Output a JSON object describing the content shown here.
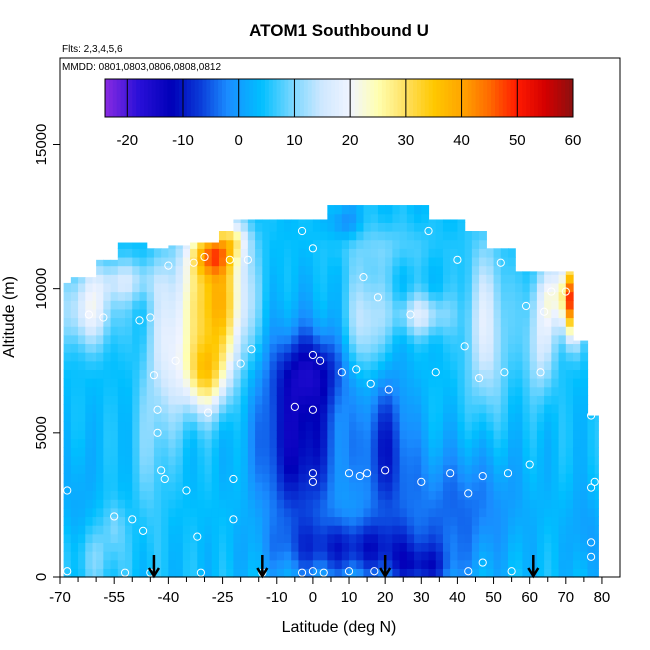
{
  "chart_data": {
    "type": "heatmap",
    "title": "ATOM1 Southbound U",
    "flights_note": "Flts: 2,3,4,5,6",
    "dates_note": "MMDD: 0801,0803,0806,0808,0812",
    "xlabel": "Latitude (deg N)",
    "ylabel": "Altitude (m)",
    "xlim": [
      -70,
      85
    ],
    "ylim": [
      0,
      18000
    ],
    "x_ticks": [
      -70,
      -55,
      -40,
      -25,
      -10,
      0,
      10,
      20,
      30,
      40,
      50,
      60,
      70,
      80
    ],
    "x_tick_labels": [
      "-70",
      "-55",
      "-40",
      "-25",
      "-10",
      "0",
      "10",
      "20",
      "30",
      "40",
      "50",
      "60",
      "70",
      "80"
    ],
    "x_minor_ticks": [
      -65,
      -60,
      -50,
      -45,
      -35,
      -30,
      -20,
      -15,
      -5,
      5,
      15,
      25,
      35,
      45,
      55,
      65,
      75
    ],
    "y_ticks": [
      0,
      5000,
      10000,
      15000
    ],
    "y_tick_labels": [
      "0",
      "5000",
      "10000",
      "15000"
    ],
    "colorbar": {
      "ticks": [
        -20,
        -10,
        0,
        10,
        20,
        30,
        40,
        50,
        60
      ],
      "tick_labels": [
        "-20",
        "-10",
        "0",
        "10",
        "20",
        "30",
        "40",
        "50",
        "60"
      ],
      "range": [
        -24,
        60
      ],
      "colors": [
        {
          "v": -24,
          "c": "#8a2be2"
        },
        {
          "v": -18,
          "c": "#2a10d8"
        },
        {
          "v": -12,
          "c": "#0000b8"
        },
        {
          "v": -7,
          "c": "#0a3ad8"
        },
        {
          "v": -2,
          "c": "#1a8cff"
        },
        {
          "v": 4,
          "c": "#00bfff"
        },
        {
          "v": 10,
          "c": "#80d8ff"
        },
        {
          "v": 15,
          "c": "#cfe8ff"
        },
        {
          "v": 20,
          "c": "#f0f4ff"
        },
        {
          "v": 25,
          "c": "#ffffb0"
        },
        {
          "v": 30,
          "c": "#ffe060"
        },
        {
          "v": 35,
          "c": "#ffc800"
        },
        {
          "v": 40,
          "c": "#ffa500"
        },
        {
          "v": 45,
          "c": "#ff6a00"
        },
        {
          "v": 50,
          "c": "#ff1a00"
        },
        {
          "v": 55,
          "c": "#d40000"
        },
        {
          "v": 60,
          "c": "#8b1010"
        }
      ]
    },
    "coverage": [
      {
        "lat0": -69,
        "lat1": -67,
        "alt_min": 0,
        "alt_max": 10200
      },
      {
        "lat0": -67,
        "lat1": -60,
        "alt_min": 0,
        "alt_max": 10400
      },
      {
        "lat0": -60,
        "lat1": -54,
        "alt_min": 0,
        "alt_max": 11000
      },
      {
        "lat0": -54,
        "lat1": -46,
        "alt_min": 0,
        "alt_max": 11600
      },
      {
        "lat0": -46,
        "lat1": -40,
        "alt_min": 0,
        "alt_max": 11400
      },
      {
        "lat0": -40,
        "lat1": -34,
        "alt_min": 0,
        "alt_max": 11500
      },
      {
        "lat0": -34,
        "lat1": -26,
        "alt_min": 0,
        "alt_max": 11600
      },
      {
        "lat0": -26,
        "lat1": -22,
        "alt_min": 0,
        "alt_max": 12000
      },
      {
        "lat0": -22,
        "lat1": -16,
        "alt_min": 0,
        "alt_max": 12400
      },
      {
        "lat0": -16,
        "lat1": -2,
        "alt_min": 0,
        "alt_max": 12400
      },
      {
        "lat0": -2,
        "lat1": 4,
        "alt_min": 0,
        "alt_max": 12400
      },
      {
        "lat0": 4,
        "lat1": 14,
        "alt_min": 0,
        "alt_max": 12900
      },
      {
        "lat0": 14,
        "lat1": 32,
        "alt_min": 0,
        "alt_max": 12900
      },
      {
        "lat0": 32,
        "lat1": 42,
        "alt_min": 0,
        "alt_max": 12400
      },
      {
        "lat0": 42,
        "lat1": 48,
        "alt_min": 0,
        "alt_max": 12000
      },
      {
        "lat0": 48,
        "lat1": 56,
        "alt_min": 0,
        "alt_max": 11400
      },
      {
        "lat0": 56,
        "lat1": 64,
        "alt_min": 0,
        "alt_max": 10600
      },
      {
        "lat0": 64,
        "lat1": 72,
        "alt_min": 0,
        "alt_max": 10600
      },
      {
        "lat0": 72,
        "lat1": 76,
        "alt_min": 0,
        "alt_max": 8200
      },
      {
        "lat0": 76,
        "lat1": 79,
        "alt_min": 0,
        "alt_max": 5600
      }
    ],
    "background_value": 4,
    "features": [
      {
        "lat": -27,
        "alt": 9600,
        "slat": 6,
        "salt": 1700,
        "amp": 34
      },
      {
        "lat": -28,
        "alt": 11200,
        "slat": 4,
        "salt": 500,
        "amp": 22
      },
      {
        "lat": -30,
        "alt": 7000,
        "slat": 4,
        "salt": 900,
        "amp": 22
      },
      {
        "lat": -22,
        "alt": 11700,
        "slat": 3,
        "salt": 400,
        "amp": 12
      },
      {
        "lat": -40,
        "alt": 8000,
        "slat": 4,
        "salt": 2000,
        "amp": 12
      },
      {
        "lat": -62,
        "alt": 9300,
        "slat": 5,
        "salt": 900,
        "amp": 15
      },
      {
        "lat": -52,
        "alt": 10300,
        "slat": 6,
        "salt": 500,
        "amp": 10
      },
      {
        "lat": -45,
        "alt": 4500,
        "slat": 3,
        "salt": 2000,
        "amp": 5
      },
      {
        "lat": -55,
        "alt": 1800,
        "slat": 2,
        "salt": 600,
        "amp": 5
      },
      {
        "lat": -60,
        "alt": 700,
        "slat": 5,
        "salt": 800,
        "amp": 5
      },
      {
        "lat": -4,
        "alt": 4800,
        "slat": 8,
        "salt": 2300,
        "amp": -17
      },
      {
        "lat": 0,
        "alt": 7200,
        "slat": 7,
        "salt": 900,
        "amp": -10
      },
      {
        "lat": 20,
        "alt": 4600,
        "slat": 5,
        "salt": 1900,
        "amp": -12
      },
      {
        "lat": 12,
        "alt": 1000,
        "slat": 14,
        "salt": 700,
        "amp": -12
      },
      {
        "lat": 30,
        "alt": 300,
        "slat": 6,
        "salt": 500,
        "amp": -10
      },
      {
        "lat": 40,
        "alt": 2500,
        "slat": 12,
        "salt": 1500,
        "amp": -8
      },
      {
        "lat": 15,
        "alt": 8800,
        "slat": 4,
        "salt": 1400,
        "amp": 12
      },
      {
        "lat": 9,
        "alt": 12300,
        "slat": 3,
        "salt": 400,
        "amp": -6
      },
      {
        "lat": 30,
        "alt": 9100,
        "slat": 5,
        "salt": 500,
        "amp": 12
      },
      {
        "lat": 48,
        "alt": 8700,
        "slat": 4,
        "salt": 2000,
        "amp": 13
      },
      {
        "lat": 63,
        "alt": 8200,
        "slat": 3,
        "salt": 1300,
        "amp": 12
      },
      {
        "lat": 72,
        "alt": 9600,
        "slat": 1.8,
        "salt": 900,
        "amp": 40
      },
      {
        "lat": 68,
        "alt": 9800,
        "slat": 4,
        "salt": 800,
        "amp": 15
      },
      {
        "lat": 20,
        "alt": 11500,
        "slat": 10,
        "salt": 600,
        "amp": 4
      },
      {
        "lat": -65,
        "alt": 3000,
        "slat": 3,
        "salt": 1400,
        "amp": -3
      },
      {
        "lat": 75,
        "alt": 1500,
        "slat": 3,
        "salt": 1200,
        "amp": -4
      }
    ],
    "sample_points": [
      [
        -68,
        200
      ],
      [
        -68,
        3000
      ],
      [
        -62,
        9100
      ],
      [
        -58,
        9000
      ],
      [
        -55,
        2100
      ],
      [
        -52,
        150
      ],
      [
        -50,
        2000
      ],
      [
        -48,
        8900
      ],
      [
        -47,
        1600
      ],
      [
        -45,
        9000
      ],
      [
        -45,
        150
      ],
      [
        -44,
        7000
      ],
      [
        -43,
        11600
      ],
      [
        -43,
        5800
      ],
      [
        -42,
        3700
      ],
      [
        -41,
        3400
      ],
      [
        -43,
        5000
      ],
      [
        -40,
        10800
      ],
      [
        -38,
        7500
      ],
      [
        -35,
        3000
      ],
      [
        -33,
        10900
      ],
      [
        -32,
        1400
      ],
      [
        -30,
        11100
      ],
      [
        -31,
        150
      ],
      [
        -29,
        5700
      ],
      [
        -23,
        11000
      ],
      [
        -22,
        3400
      ],
      [
        -22,
        2000
      ],
      [
        -20,
        7400
      ],
      [
        -17,
        7900
      ],
      [
        -18,
        11000
      ],
      [
        -14,
        150
      ],
      [
        -5,
        5900
      ],
      [
        -3,
        150
      ],
      [
        -3,
        12000
      ],
      [
        0,
        11400
      ],
      [
        0,
        7700
      ],
      [
        0,
        5800
      ],
      [
        0,
        3600
      ],
      [
        0,
        3300
      ],
      [
        0,
        200
      ],
      [
        2,
        7500
      ],
      [
        3,
        150
      ],
      [
        8,
        7100
      ],
      [
        10,
        3600
      ],
      [
        10,
        200
      ],
      [
        12,
        7200
      ],
      [
        13,
        3500
      ],
      [
        14,
        10400
      ],
      [
        15,
        3600
      ],
      [
        16,
        6700
      ],
      [
        17,
        200
      ],
      [
        18,
        9700
      ],
      [
        20,
        3700
      ],
      [
        21,
        6500
      ],
      [
        27,
        9100
      ],
      [
        30,
        3300
      ],
      [
        32,
        12000
      ],
      [
        34,
        7100
      ],
      [
        38,
        3600
      ],
      [
        40,
        11000
      ],
      [
        42,
        8000
      ],
      [
        43,
        2900
      ],
      [
        43,
        200
      ],
      [
        46,
        6900
      ],
      [
        47,
        3500
      ],
      [
        47,
        500
      ],
      [
        52,
        10900
      ],
      [
        53,
        7100
      ],
      [
        54,
        3600
      ],
      [
        55,
        200
      ],
      [
        59,
        9400
      ],
      [
        60,
        3900
      ],
      [
        63,
        7100
      ],
      [
        64,
        9200
      ],
      [
        66,
        9900
      ],
      [
        70,
        9900
      ],
      [
        77,
        5600
      ],
      [
        77,
        3100
      ],
      [
        78,
        3300
      ],
      [
        77,
        1200
      ],
      [
        77,
        700
      ]
    ],
    "arrows_lat": [
      -44,
      -14,
      20,
      61
    ]
  }
}
